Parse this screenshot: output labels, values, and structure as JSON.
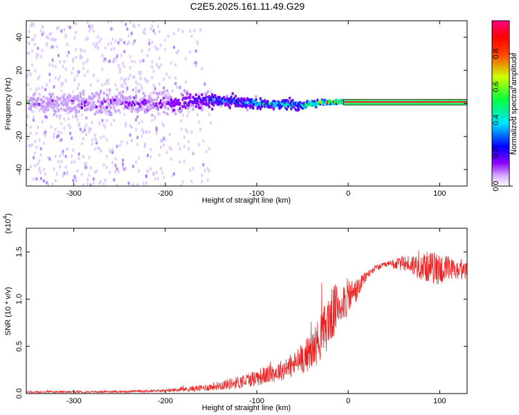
{
  "title": "C2E5.2025.161.11.49.G29",
  "chart_data": [
    {
      "type": "heatmap",
      "xlabel": "Height of straight line (km)",
      "ylabel": "Frequency (Hz)",
      "xlim": [
        -352,
        130
      ],
      "ylim": [
        -50,
        50
      ],
      "x_ticks": [
        -300,
        -200,
        -100,
        0,
        100
      ],
      "y_ticks": [
        -40,
        -20,
        0,
        20,
        40
      ],
      "colorbar": {
        "label": "Normalized spectral amplitude",
        "range": [
          0,
          1
        ],
        "ticks": [
          "0.0",
          "0.2",
          "0.4",
          "0.6",
          "0.8"
        ],
        "colors": [
          "#ffffff",
          "#8a00ff",
          "#0000ff",
          "#00e5ff",
          "#00ff40",
          "#d0ff00",
          "#ff0000",
          "#ff0080"
        ]
      },
      "description_points": [
        {
          "x": -350,
          "center": 0,
          "spread": 12,
          "amp": 0.15
        },
        {
          "x": -200,
          "center": 0,
          "spread": 10,
          "amp": 0.2
        },
        {
          "x": -150,
          "center": 2,
          "spread": 7,
          "amp": 0.35
        },
        {
          "x": -100,
          "center": 0,
          "spread": 5,
          "amp": 0.45
        },
        {
          "x": -50,
          "center": -1,
          "spread": 4,
          "amp": 0.5
        },
        {
          "x": -20,
          "center": 1,
          "spread": 2,
          "amp": 0.8
        },
        {
          "x": 10,
          "center": 1,
          "spread": 1,
          "amp": 0.95
        },
        {
          "x": 130,
          "center": 1,
          "spread": 1,
          "amp": 0.95
        }
      ]
    },
    {
      "type": "line",
      "xlabel": "Height of straight line (km)",
      "ylabel": "SNR (10 * v/v)",
      "multiplier": "(x10",
      "multiplier_exp": "4",
      "multiplier_close": ")",
      "xlim": [
        -352,
        130
      ],
      "ylim": [
        0,
        1.75
      ],
      "x_ticks": [
        -300,
        -200,
        -100,
        0,
        100
      ],
      "y_ticks": [
        "0.0",
        "0.5",
        "1.0",
        "1.5"
      ],
      "color": "#ee2222",
      "envelope": {
        "x": [
          -352,
          -250,
          -200,
          -170,
          -150,
          -120,
          -100,
          -80,
          -60,
          -40,
          -30,
          -20,
          -10,
          0,
          10,
          20,
          30,
          40,
          60,
          80,
          100,
          120,
          130
        ],
        "mean": [
          0.015,
          0.02,
          0.03,
          0.05,
          0.07,
          0.12,
          0.17,
          0.22,
          0.3,
          0.45,
          0.6,
          0.8,
          0.95,
          1.02,
          1.1,
          1.25,
          1.33,
          1.36,
          1.38,
          1.35,
          1.32,
          1.3,
          1.3
        ],
        "noise": [
          0.01,
          0.01,
          0.015,
          0.03,
          0.04,
          0.07,
          0.09,
          0.1,
          0.13,
          0.2,
          0.25,
          0.3,
          0.25,
          0.2,
          0.12,
          0.05,
          0.03,
          0.03,
          0.08,
          0.15,
          0.18,
          0.1,
          0.08
        ]
      }
    }
  ]
}
